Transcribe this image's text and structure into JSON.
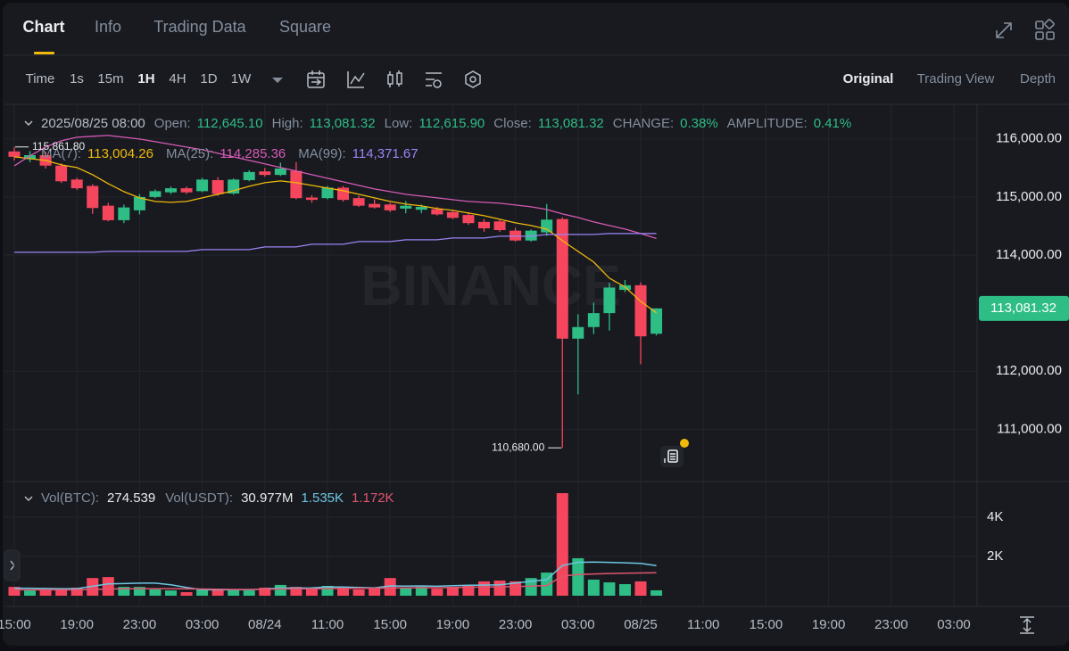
{
  "tabs": [
    "Chart",
    "Info",
    "Trading Data",
    "Square"
  ],
  "toolbar": {
    "intervals": [
      "Time",
      "1s",
      "15m",
      "1H",
      "4H",
      "1D",
      "1W"
    ],
    "views": [
      "Original",
      "Trading View",
      "Depth"
    ]
  },
  "chart_data": [
    {
      "type": "candlestick",
      "watermark": "BINANCE",
      "header": {
        "date": "2025/08/25 08:00",
        "fields": [
          {
            "label": "Open:",
            "value": "112,645.10"
          },
          {
            "label": "High:",
            "value": "113,081.32"
          },
          {
            "label": "Low:",
            "value": "112,615.90"
          },
          {
            "label": "Close:",
            "value": "113,081.32"
          },
          {
            "label": "CHANGE:",
            "value": "0.38%"
          },
          {
            "label": "AMPLITUDE:",
            "value": "0.41%"
          }
        ]
      },
      "categories": [
        "15:00",
        null,
        null,
        null,
        "19:00",
        null,
        null,
        null,
        "23:00",
        null,
        null,
        null,
        "03:00",
        null,
        null,
        null,
        "08/24",
        null,
        null,
        null,
        "11:00",
        null,
        null,
        null,
        "15:00",
        null,
        null,
        null,
        "19:00",
        null,
        null,
        null,
        "23:00",
        null,
        null,
        null,
        "03:00",
        null,
        null,
        null,
        "08/25",
        null,
        null,
        null,
        "11:00",
        null,
        null,
        null,
        "15:00",
        null,
        null,
        null,
        "19:00",
        null,
        null,
        null,
        "23:00",
        null,
        null,
        null,
        "03:00"
      ],
      "open": [
        115784,
        115650,
        115720,
        115540,
        115300,
        115190,
        114850,
        114600,
        114770,
        115000,
        115080,
        115150,
        115100,
        115290,
        115060,
        115290,
        115440,
        115380,
        115450,
        114990,
        114980,
        115160,
        114980,
        114880,
        114870,
        114800,
        114780,
        114790,
        114740,
        114690,
        114570,
        114580,
        114420,
        114250,
        114390,
        114620,
        112560,
        112760,
        113000,
        113400,
        113480,
        112645.1,
        null,
        null,
        null,
        null,
        null,
        null,
        null,
        null,
        null,
        null,
        null,
        null,
        null,
        null,
        null,
        null,
        null,
        null,
        null
      ],
      "high": [
        115861.8,
        115790,
        115780,
        115580,
        115330,
        115220,
        114900,
        114870,
        115050,
        115130,
        115180,
        115180,
        115330,
        115340,
        115320,
        115460,
        115500,
        115590,
        115600,
        115030,
        115190,
        115190,
        115020,
        114960,
        114900,
        114930,
        114870,
        114830,
        114770,
        114740,
        114620,
        114620,
        114470,
        114440,
        114880,
        114650,
        112980,
        113180,
        113520,
        113570,
        113530,
        113081.32,
        null,
        null,
        null,
        null,
        null,
        null,
        null,
        null,
        null,
        null,
        null,
        null,
        null,
        null,
        null,
        null,
        null,
        null,
        null
      ],
      "low": [
        115630,
        115600,
        115490,
        115240,
        115120,
        114710,
        114580,
        114550,
        114700,
        114980,
        115050,
        115050,
        115080,
        115020,
        115040,
        115270,
        115350,
        115360,
        114960,
        114900,
        114960,
        114920,
        114830,
        114800,
        114740,
        114720,
        114720,
        114680,
        114620,
        114520,
        114400,
        114400,
        114230,
        114230,
        114330,
        110680,
        111600,
        112640,
        112700,
        113360,
        112120,
        112615.9,
        null,
        null,
        null,
        null,
        null,
        null,
        null,
        null,
        null,
        null,
        null,
        null,
        null,
        null,
        null,
        null,
        null,
        null,
        null
      ],
      "close": [
        115691,
        115720,
        115540,
        115270,
        115150,
        114810,
        114600,
        114820,
        115000,
        115100,
        115150,
        115080,
        115300,
        115050,
        115300,
        115430,
        115380,
        115490,
        114980,
        114950,
        115160,
        114950,
        114850,
        114820,
        114770,
        114850,
        114830,
        114700,
        114640,
        114550,
        114460,
        114430,
        114250,
        114420,
        114610,
        112560,
        112760,
        113000,
        113440,
        113480,
        112600,
        113081.32,
        null,
        null,
        null,
        null,
        null,
        null,
        null,
        null,
        null,
        null,
        null,
        null,
        null,
        null,
        null,
        null,
        null,
        null,
        null
      ],
      "up_color": "#2ebd85",
      "down_color": "#f6465d",
      "series": [
        {
          "name": "MA(7):",
          "color": "#f0b90b",
          "legend_value": "113,004.26",
          "values": [
            115691,
            115660,
            115630,
            115553,
            115507,
            115384,
            115230,
            115092,
            114985,
            114923,
            114908,
            114923,
            114985,
            115046,
            115108,
            115184,
            115246,
            115276,
            115246,
            115200,
            115154,
            115108,
            115046,
            114985,
            114923,
            114877,
            114846,
            114800,
            114770,
            114724,
            114677,
            114616,
            114555,
            114508,
            114447,
            114247,
            114063,
            113879,
            113602,
            113449,
            113203,
            113004.26,
            null,
            null,
            null,
            null,
            null,
            null,
            null,
            null,
            null,
            null,
            null,
            null,
            null,
            null,
            null,
            null,
            null,
            null,
            null
          ]
        },
        {
          "name": "MA(25):",
          "color": "#d65ab5",
          "legend_value": "114,285.36",
          "values": [
            115538,
            115707,
            115860,
            115968,
            116029,
            116045,
            116060,
            116029,
            115998,
            115952,
            115906,
            115860,
            115814,
            115753,
            115691,
            115630,
            115569,
            115507,
            115446,
            115384,
            115323,
            115261,
            115200,
            115138,
            115092,
            115046,
            115015,
            114985,
            114954,
            114923,
            114908,
            114892,
            114862,
            114831,
            114785,
            114708,
            114647,
            114570,
            114508,
            114447,
            114370,
            114285.36,
            null,
            null,
            null,
            null,
            null,
            null,
            null,
            null,
            null,
            null,
            null,
            null,
            null,
            null,
            null,
            null,
            null,
            null,
            null
          ]
        },
        {
          "name": "MA(99):",
          "color": "#9c83f5",
          "legend_value": "114,371.67",
          "values": [
            114048,
            114048,
            114048,
            114048,
            114048,
            114048,
            114063,
            114063,
            114063,
            114063,
            114063,
            114063,
            114094,
            114094,
            114094,
            114094,
            114140,
            114140,
            114140,
            114186,
            114186,
            114186,
            114232,
            114232,
            114232,
            114263,
            114263,
            114263,
            114293,
            114293,
            114293,
            114324,
            114324,
            114324,
            114355,
            114355,
            114355,
            114355,
            114370,
            114370,
            114370,
            114371.67,
            null,
            null,
            null,
            null,
            null,
            null,
            null,
            null,
            null,
            null,
            null,
            null,
            null,
            null,
            null,
            null,
            null,
            null,
            null
          ]
        }
      ],
      "high_marker": {
        "value": 115861.8,
        "label": "115,861.80"
      },
      "low_marker": {
        "value": 110680,
        "label": "110,680.00"
      },
      "last_price": {
        "value": 113081.32,
        "label": "113,081.32"
      },
      "ylim": [
        110130,
        116580
      ],
      "yticks": [
        {
          "value": 111000,
          "label": "111,000.00"
        },
        {
          "value": 112000,
          "label": "112,000.00"
        },
        {
          "value": 114000,
          "label": "114,000.00"
        },
        {
          "value": 115000,
          "label": "115,000.00"
        },
        {
          "value": 116000,
          "label": "116,000.00"
        }
      ],
      "grid": true
    },
    {
      "type": "bar",
      "series": [
        {
          "name": "Vol(BTC):",
          "legend_value": "274.539",
          "values": [
            450,
            270,
            320,
            360,
            410,
            900,
            950,
            450,
            450,
            320,
            270,
            180,
            320,
            360,
            320,
            270,
            410,
            550,
            450,
            360,
            500,
            450,
            320,
            360,
            900,
            410,
            450,
            360,
            450,
            500,
            730,
            770,
            730,
            900,
            1180,
            5230,
            1910,
            820,
            680,
            590,
            730,
            274.539,
            null,
            null,
            null,
            null,
            null,
            null,
            null,
            null,
            null,
            null,
            null,
            null,
            null,
            null,
            null,
            null,
            null,
            null,
            null
          ]
        }
      ],
      "extra": {
        "name": "Vol(USDT):",
        "value": "30.977M"
      },
      "lines": [
        {
          "color": "#6ec6e0",
          "legend_value": "1.535K",
          "values": [
            380,
            380,
            370,
            360,
            360,
            480,
            600,
            620,
            640,
            640,
            560,
            420,
            300,
            300,
            300,
            310,
            340,
            390,
            390,
            400,
            450,
            440,
            420,
            400,
            500,
            490,
            500,
            480,
            510,
            530,
            540,
            560,
            640,
            730,
            820,
            1540,
            1700,
            1720,
            1700,
            1680,
            1650,
            1535,
            null,
            null,
            null,
            null,
            null,
            null,
            null,
            null,
            null,
            null,
            null,
            null,
            null,
            null,
            null,
            null,
            null,
            null,
            null
          ]
        },
        {
          "color": "#e0566f",
          "legend_value": "1.172K",
          "values": [
            300,
            300,
            300,
            300,
            300,
            320,
            340,
            350,
            360,
            360,
            360,
            350,
            340,
            330,
            320,
            320,
            330,
            340,
            350,
            350,
            360,
            370,
            380,
            380,
            400,
            400,
            410,
            410,
            420,
            430,
            440,
            450,
            470,
            490,
            520,
            1000,
            1080,
            1110,
            1130,
            1150,
            1160,
            1172,
            null,
            null,
            null,
            null,
            null,
            null,
            null,
            null,
            null,
            null,
            null,
            null,
            null,
            null,
            null,
            null,
            null,
            null,
            null
          ]
        }
      ],
      "ylim": [
        0,
        5820
      ],
      "yticks": [
        {
          "value": 2000,
          "label": "2K"
        },
        {
          "value": 4000,
          "label": "4K"
        }
      ],
      "grid": true
    }
  ]
}
